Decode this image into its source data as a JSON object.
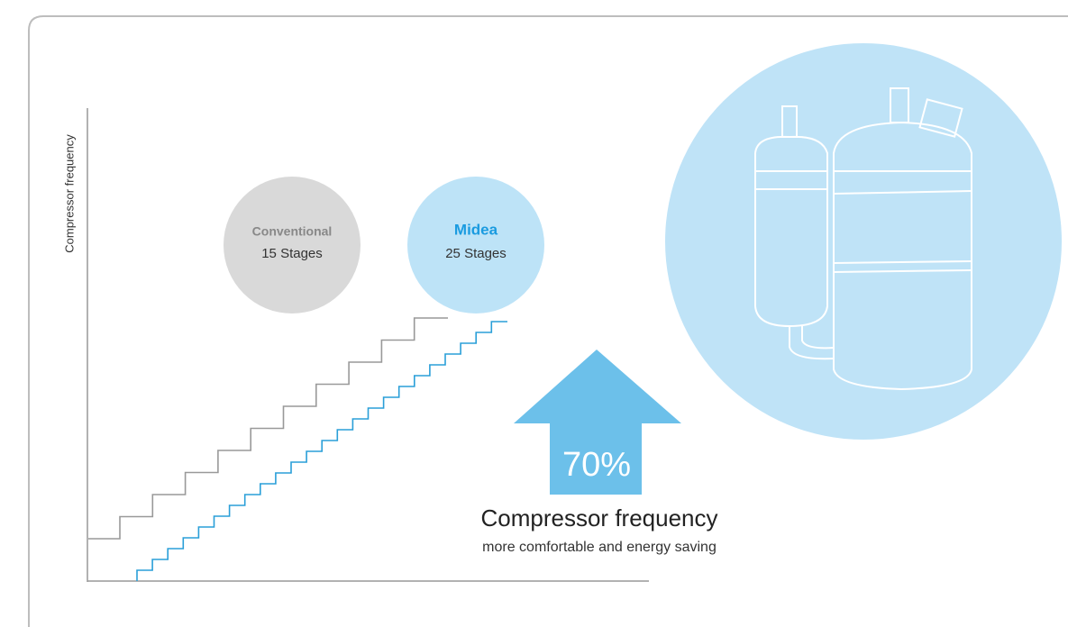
{
  "y_axis_label": "Compressor frequency",
  "conventional": {
    "name": "Conventional",
    "stages": "15 Stages"
  },
  "midea": {
    "name": "Midea",
    "stages": "25 Stages"
  },
  "arrow_label": "70%",
  "caption": {
    "title": "Compressor frequency",
    "subtitle": "more comfortable and energy saving"
  }
}
